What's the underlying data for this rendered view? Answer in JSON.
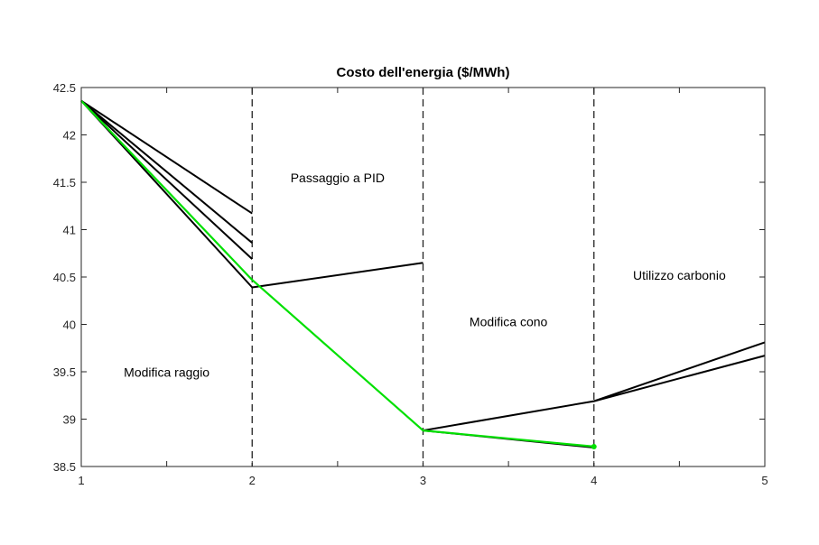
{
  "chart_data": {
    "type": "line",
    "title": "Costo dell'energia ($/MWh)",
    "xlabel": "",
    "ylabel": "",
    "xlim": [
      1,
      5
    ],
    "ylim": [
      38.5,
      42.5
    ],
    "xticks": [
      1,
      2,
      3,
      4,
      5
    ],
    "yticks": [
      38.5,
      39,
      39.5,
      40,
      40.5,
      41,
      41.5,
      42,
      42.5
    ],
    "xtick_labels": [
      "1",
      "2",
      "3",
      "4",
      "5"
    ],
    "ytick_labels": [
      "38.5",
      "39",
      "39.5",
      "40",
      "40.5",
      "41",
      "41.5",
      "42",
      "42.5"
    ],
    "vlines": [
      2,
      3,
      4
    ],
    "grid": false,
    "legend": "none",
    "annotations": [
      {
        "text": "Modifica raggio",
        "x": 1.5,
        "y": 39.45
      },
      {
        "text": "Passaggio a PID",
        "x": 2.5,
        "y": 41.5
      },
      {
        "text": "Modifica cono",
        "x": 3.5,
        "y": 39.98
      },
      {
        "text": "Utilizzo carbonio",
        "x": 4.5,
        "y": 40.47
      }
    ],
    "series": [
      {
        "color": "#000000",
        "points": [
          [
            1,
            42.36
          ],
          [
            2,
            41.17
          ]
        ]
      },
      {
        "color": "#000000",
        "points": [
          [
            1,
            42.36
          ],
          [
            2,
            40.86
          ]
        ]
      },
      {
        "color": "#000000",
        "points": [
          [
            1,
            42.36
          ],
          [
            2,
            40.69
          ]
        ]
      },
      {
        "color": "#000000",
        "points": [
          [
            1,
            42.36
          ],
          [
            2,
            40.39
          ],
          [
            3,
            40.65
          ]
        ]
      },
      {
        "color": "#000000",
        "points": [
          [
            3,
            38.88
          ],
          [
            4,
            39.19
          ],
          [
            5,
            39.81
          ]
        ]
      },
      {
        "color": "#000000",
        "points": [
          [
            4,
            39.19
          ],
          [
            5,
            39.67
          ]
        ]
      },
      {
        "color": "#000000",
        "points": [
          [
            3,
            38.88
          ],
          [
            4,
            38.7
          ]
        ]
      },
      {
        "color": "#00e000",
        "points": [
          [
            1,
            42.36
          ],
          [
            2,
            40.47
          ],
          [
            3,
            38.88
          ],
          [
            4,
            38.71
          ]
        ]
      }
    ]
  }
}
